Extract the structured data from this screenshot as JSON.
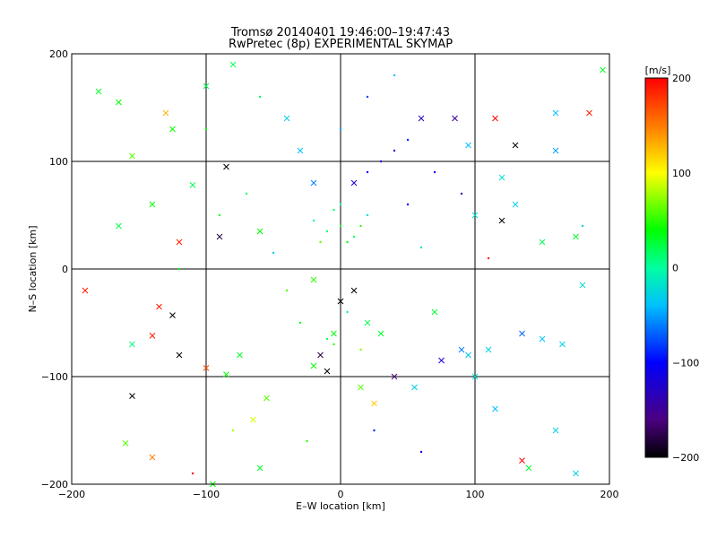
{
  "chart_data": {
    "type": "scatter",
    "title": "Tromsø 20140401 19:46:00–19:47:43",
    "subtitle": "RwPretec (8p) EXPERIMENTAL SKYMAP",
    "xlabel": "E–W location [km]",
    "ylabel": "N–S location [km]",
    "xlim": [
      -200,
      200
    ],
    "ylim": [
      -200,
      200
    ],
    "x_ticks": [
      "−200",
      "−100",
      "0",
      "100",
      "200"
    ],
    "y_ticks": [
      "−200",
      "−100",
      "0",
      "100",
      "200"
    ],
    "grid": true,
    "colorbar": {
      "label": "[m/s]",
      "range": [
        -200,
        200
      ],
      "ticks": [
        "−200",
        "−100",
        "0",
        "100",
        "200"
      ],
      "colormap": "rainbow (black–purple–blue–cyan–green–yellow–red)"
    },
    "marker_types": [
      "dot",
      "x"
    ],
    "points": [
      {
        "x": 0,
        "y": 40,
        "v": 30,
        "m": "dot"
      },
      {
        "x": -10,
        "y": 35,
        "v": 10,
        "m": "dot"
      },
      {
        "x": 10,
        "y": 30,
        "v": 20,
        "m": "dot"
      },
      {
        "x": -20,
        "y": 45,
        "v": 0,
        "m": "dot"
      },
      {
        "x": 20,
        "y": 50,
        "v": -20,
        "m": "dot"
      },
      {
        "x": 5,
        "y": 25,
        "v": 40,
        "m": "dot"
      },
      {
        "x": -5,
        "y": 55,
        "v": 10,
        "m": "dot"
      },
      {
        "x": 15,
        "y": 40,
        "v": 50,
        "m": "dot"
      },
      {
        "x": -15,
        "y": 25,
        "v": 60,
        "m": "dot"
      },
      {
        "x": 0,
        "y": 60,
        "v": 0,
        "m": "dot"
      },
      {
        "x": 10,
        "y": 80,
        "v": -120,
        "m": "x"
      },
      {
        "x": 20,
        "y": 90,
        "v": -100,
        "m": "dot"
      },
      {
        "x": 30,
        "y": 100,
        "v": -110,
        "m": "dot"
      },
      {
        "x": 40,
        "y": 110,
        "v": -120,
        "m": "dot"
      },
      {
        "x": 50,
        "y": 120,
        "v": -90,
        "m": "dot"
      },
      {
        "x": -20,
        "y": 80,
        "v": -60,
        "m": "x"
      },
      {
        "x": -30,
        "y": 110,
        "v": -40,
        "m": "x"
      },
      {
        "x": -40,
        "y": 140,
        "v": -30,
        "m": "x"
      },
      {
        "x": 0,
        "y": 130,
        "v": -50,
        "m": "dot"
      },
      {
        "x": 60,
        "y": 140,
        "v": -130,
        "m": "x"
      },
      {
        "x": 85,
        "y": 140,
        "v": -150,
        "m": "x"
      },
      {
        "x": 95,
        "y": 115,
        "v": -40,
        "m": "x"
      },
      {
        "x": 120,
        "y": 85,
        "v": -20,
        "m": "x"
      },
      {
        "x": 130,
        "y": 60,
        "v": -30,
        "m": "x"
      },
      {
        "x": 160,
        "y": 110,
        "v": -50,
        "m": "x"
      },
      {
        "x": 185,
        "y": 145,
        "v": 190,
        "m": "x"
      },
      {
        "x": 115,
        "y": 140,
        "v": 200,
        "m": "x"
      },
      {
        "x": 130,
        "y": 115,
        "v": -210,
        "m": "x"
      },
      {
        "x": 120,
        "y": 45,
        "v": -210,
        "m": "x"
      },
      {
        "x": -85,
        "y": 95,
        "v": -210,
        "m": "x"
      },
      {
        "x": -110,
        "y": 78,
        "v": 20,
        "m": "x"
      },
      {
        "x": -120,
        "y": 25,
        "v": 190,
        "m": "x"
      },
      {
        "x": -90,
        "y": 30,
        "v": -180,
        "m": "x"
      },
      {
        "x": -60,
        "y": 35,
        "v": 40,
        "m": "x"
      },
      {
        "x": -135,
        "y": -35,
        "v": 190,
        "m": "x"
      },
      {
        "x": -125,
        "y": -43,
        "v": -210,
        "m": "x"
      },
      {
        "x": -155,
        "y": -70,
        "v": 10,
        "m": "x"
      },
      {
        "x": -140,
        "y": -62,
        "v": 190,
        "m": "x"
      },
      {
        "x": -120,
        "y": -80,
        "v": -210,
        "m": "x"
      },
      {
        "x": -100,
        "y": -92,
        "v": 170,
        "m": "x"
      },
      {
        "x": -85,
        "y": -98,
        "v": 40,
        "m": "x"
      },
      {
        "x": -75,
        "y": -80,
        "v": 30,
        "m": "x"
      },
      {
        "x": -190,
        "y": -20,
        "v": 190,
        "m": "x"
      },
      {
        "x": -155,
        "y": -118,
        "v": -210,
        "m": "x"
      },
      {
        "x": -160,
        "y": -162,
        "v": 60,
        "m": "x"
      },
      {
        "x": -140,
        "y": -175,
        "v": 150,
        "m": "x"
      },
      {
        "x": -95,
        "y": -200,
        "v": 40,
        "m": "x"
      },
      {
        "x": -60,
        "y": -185,
        "v": 30,
        "m": "x"
      },
      {
        "x": -65,
        "y": -140,
        "v": 90,
        "m": "x"
      },
      {
        "x": -55,
        "y": -120,
        "v": 60,
        "m": "x"
      },
      {
        "x": -20,
        "y": -90,
        "v": 40,
        "m": "x"
      },
      {
        "x": -10,
        "y": -95,
        "v": -210,
        "m": "x"
      },
      {
        "x": -15,
        "y": -80,
        "v": -180,
        "m": "x"
      },
      {
        "x": -5,
        "y": -60,
        "v": 40,
        "m": "x"
      },
      {
        "x": 0,
        "y": -30,
        "v": -210,
        "m": "x"
      },
      {
        "x": 10,
        "y": -20,
        "v": -210,
        "m": "x"
      },
      {
        "x": -20,
        "y": -10,
        "v": 50,
        "m": "x"
      },
      {
        "x": 20,
        "y": -50,
        "v": 20,
        "m": "x"
      },
      {
        "x": 30,
        "y": -60,
        "v": 30,
        "m": "x"
      },
      {
        "x": 15,
        "y": -110,
        "v": 60,
        "m": "x"
      },
      {
        "x": 25,
        "y": -125,
        "v": 120,
        "m": "x"
      },
      {
        "x": 40,
        "y": -100,
        "v": -160,
        "m": "x"
      },
      {
        "x": 55,
        "y": -110,
        "v": -30,
        "m": "x"
      },
      {
        "x": 75,
        "y": -85,
        "v": -120,
        "m": "x"
      },
      {
        "x": 95,
        "y": -80,
        "v": -40,
        "m": "x"
      },
      {
        "x": 110,
        "y": -75,
        "v": -30,
        "m": "x"
      },
      {
        "x": 135,
        "y": -60,
        "v": -70,
        "m": "x"
      },
      {
        "x": 150,
        "y": -65,
        "v": -40,
        "m": "x"
      },
      {
        "x": 165,
        "y": -70,
        "v": -30,
        "m": "x"
      },
      {
        "x": 180,
        "y": -15,
        "v": -20,
        "m": "x"
      },
      {
        "x": 100,
        "y": -100,
        "v": -20,
        "m": "x"
      },
      {
        "x": 115,
        "y": -130,
        "v": -40,
        "m": "x"
      },
      {
        "x": 135,
        "y": -178,
        "v": 200,
        "m": "x"
      },
      {
        "x": 160,
        "y": -150,
        "v": -30,
        "m": "x"
      },
      {
        "x": 175,
        "y": -190,
        "v": -30,
        "m": "x"
      },
      {
        "x": 140,
        "y": -185,
        "v": 30,
        "m": "x"
      },
      {
        "x": 90,
        "y": -75,
        "v": -60,
        "m": "x"
      },
      {
        "x": 70,
        "y": -40,
        "v": 30,
        "m": "x"
      },
      {
        "x": -155,
        "y": 105,
        "v": 60,
        "m": "x"
      },
      {
        "x": -165,
        "y": 155,
        "v": 40,
        "m": "x"
      },
      {
        "x": -180,
        "y": 165,
        "v": 30,
        "m": "x"
      },
      {
        "x": -130,
        "y": 145,
        "v": 130,
        "m": "x"
      },
      {
        "x": -125,
        "y": 130,
        "v": 40,
        "m": "x"
      },
      {
        "x": -100,
        "y": 170,
        "v": 20,
        "m": "x"
      },
      {
        "x": -80,
        "y": 190,
        "v": 20,
        "m": "x"
      },
      {
        "x": -140,
        "y": 60,
        "v": 40,
        "m": "x"
      },
      {
        "x": -165,
        "y": 40,
        "v": 20,
        "m": "x"
      },
      {
        "x": 160,
        "y": 145,
        "v": -40,
        "m": "x"
      },
      {
        "x": 195,
        "y": 185,
        "v": 30,
        "m": "x"
      },
      {
        "x": 175,
        "y": 30,
        "v": 30,
        "m": "x"
      },
      {
        "x": 150,
        "y": 25,
        "v": 20,
        "m": "x"
      },
      {
        "x": 100,
        "y": 50,
        "v": -20,
        "m": "x"
      },
      {
        "x": 110,
        "y": 10,
        "v": 190,
        "m": "dot"
      },
      {
        "x": 180,
        "y": 40,
        "v": -30,
        "m": "dot"
      },
      {
        "x": -50,
        "y": 15,
        "v": -30,
        "m": "dot"
      },
      {
        "x": -40,
        "y": -20,
        "v": 60,
        "m": "dot"
      },
      {
        "x": -30,
        "y": -50,
        "v": 30,
        "m": "dot"
      },
      {
        "x": -10,
        "y": -65,
        "v": 20,
        "m": "dot"
      },
      {
        "x": 5,
        "y": -40,
        "v": 10,
        "m": "dot"
      },
      {
        "x": -5,
        "y": -70,
        "v": 50,
        "m": "dot"
      },
      {
        "x": 15,
        "y": -75,
        "v": 70,
        "m": "dot"
      },
      {
        "x": 25,
        "y": -150,
        "v": -90,
        "m": "dot"
      },
      {
        "x": -25,
        "y": -160,
        "v": 50,
        "m": "dot"
      },
      {
        "x": -80,
        "y": -150,
        "v": 80,
        "m": "dot"
      },
      {
        "x": -110,
        "y": -190,
        "v": 200,
        "m": "dot"
      },
      {
        "x": 60,
        "y": -170,
        "v": -110,
        "m": "dot"
      },
      {
        "x": 40,
        "y": 180,
        "v": -40,
        "m": "dot"
      },
      {
        "x": 20,
        "y": 160,
        "v": -80,
        "m": "dot"
      },
      {
        "x": -60,
        "y": 160,
        "v": 20,
        "m": "dot"
      },
      {
        "x": -100,
        "y": 130,
        "v": 40,
        "m": "dot"
      },
      {
        "x": 70,
        "y": 90,
        "v": -110,
        "m": "dot"
      },
      {
        "x": 90,
        "y": 70,
        "v": -130,
        "m": "dot"
      },
      {
        "x": 50,
        "y": 60,
        "v": -100,
        "m": "dot"
      },
      {
        "x": 60,
        "y": 20,
        "v": -20,
        "m": "dot"
      },
      {
        "x": -70,
        "y": 70,
        "v": 10,
        "m": "dot"
      },
      {
        "x": -90,
        "y": 50,
        "v": 30,
        "m": "dot"
      },
      {
        "x": -120,
        "y": 0,
        "v": 40,
        "m": "dot"
      }
    ]
  }
}
